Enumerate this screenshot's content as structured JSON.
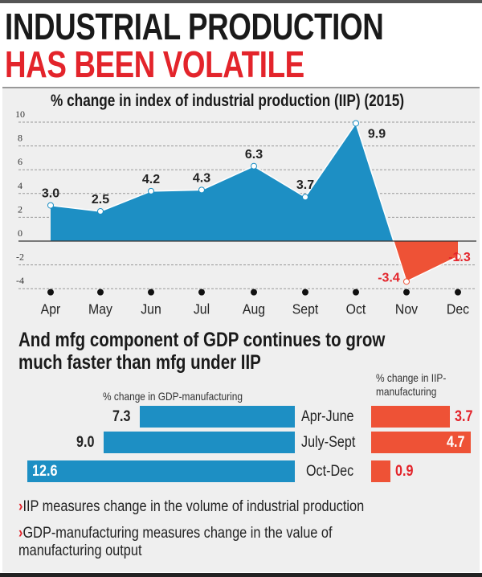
{
  "title_line1": "INDUSTRIAL PRODUCTION",
  "title_line2": "HAS BEEN VOLATILE",
  "colors": {
    "positive": "#1d8fc4",
    "negative": "#ee5236",
    "title_red": "#e3242b",
    "label_red": "#e3242b"
  },
  "chart_data": [
    {
      "type": "area",
      "title": "% change in index of industrial production (IIP) (2015)",
      "categories": [
        "Apr",
        "May",
        "Jun",
        "Jul",
        "Aug",
        "Sept",
        "Oct",
        "Nov",
        "Dec"
      ],
      "values": [
        3.0,
        2.5,
        4.2,
        4.3,
        6.3,
        3.7,
        9.9,
        -3.4,
        -1.3
      ],
      "value_labels": [
        "3.0",
        "2.5",
        "4.2",
        "4.3",
        "6.3",
        "3.7",
        "9.9",
        "-3.4",
        "-1.3"
      ],
      "ylim": [
        -4,
        10
      ],
      "yticks": [
        10,
        8,
        6,
        4,
        2,
        0,
        -2,
        -4
      ],
      "ytick_labels": [
        "10",
        "8",
        "6",
        "4",
        "2",
        "0",
        "-2",
        "-4"
      ],
      "grid": true
    },
    {
      "type": "bar",
      "title": "And mfg component of GDP continues to grow much faster than mfg under IIP",
      "categories": [
        "Apr-June",
        "July-Sept",
        "Oct-Dec"
      ],
      "series": [
        {
          "name": "% change in GDP-manufacturing",
          "values": [
            7.3,
            9.0,
            12.6
          ],
          "labels": [
            "7.3",
            "9.0",
            "12.6"
          ]
        },
        {
          "name": "% change in IIP-manufacturing",
          "values": [
            3.7,
            4.7,
            0.9
          ],
          "labels": [
            "3.7",
            "4.7",
            "0.9"
          ]
        }
      ],
      "subtitle_line1": "And mfg component of GDP continues to grow",
      "subtitle_line2": "much faster than mfg under IIP",
      "gdp_header": "% change in GDP-manufacturing",
      "iip_header_line1": "% change in IIP-",
      "iip_header_line2": "manufacturing"
    }
  ],
  "notes": {
    "bullet": "›",
    "note1": "IIP measures change in the volume of industrial production",
    "note2_line1": "GDP-manufacturing measures change in the value of",
    "note2_line2": "manufacturing output"
  }
}
